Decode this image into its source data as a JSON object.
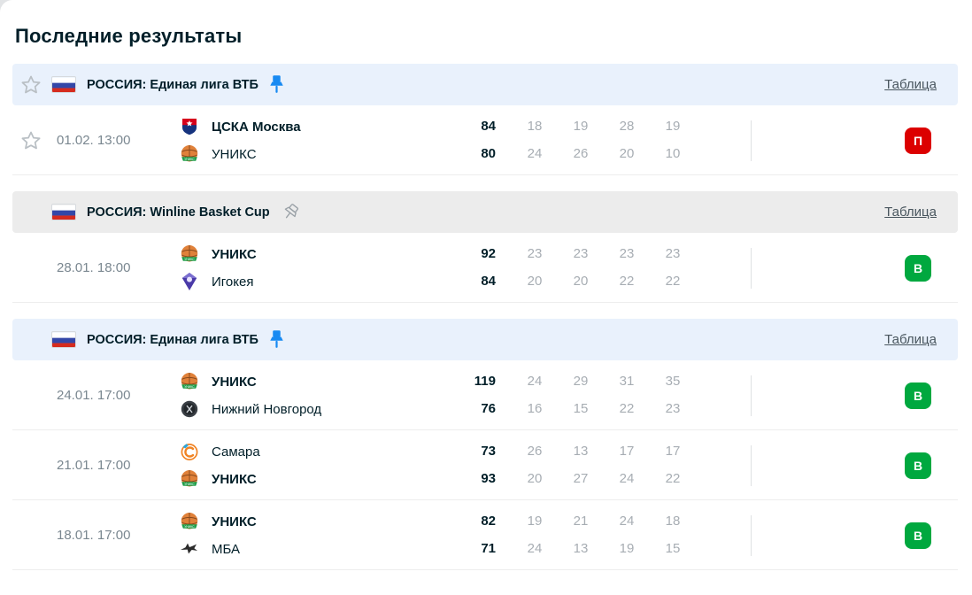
{
  "title": "Последние результаты",
  "table_link_label": "Таблица",
  "colors": {
    "accent_pin_blue": "#188af2",
    "win_green": "#00a83f",
    "loss_red": "#dc0000",
    "pinned_header_bg": "#e9f1fc",
    "unpinned_header_bg": "#ececec",
    "text_dark": "#001e28",
    "text_gray": "#7a8790",
    "quarters_gray": "#a7adb3"
  },
  "sections": [
    {
      "league": "РОССИЯ: Единая лига ВТБ",
      "flag": "russia",
      "pinned": true,
      "header_starred": true,
      "matches": [
        {
          "date": "01.02. 13:00",
          "starred": true,
          "teams": [
            {
              "name": "ЦСКА Москва",
              "logo": "cska",
              "winner": true,
              "score": "84",
              "quarters": [
                "18",
                "19",
                "28",
                "19"
              ]
            },
            {
              "name": "УНИКС",
              "logo": "uniks",
              "winner": false,
              "score": "80",
              "quarters": [
                "24",
                "26",
                "20",
                "10"
              ]
            }
          ],
          "result": {
            "label": "П",
            "type": "loss"
          }
        }
      ]
    },
    {
      "league": "РОССИЯ: Winline Basket Cup",
      "flag": "russia",
      "pinned": false,
      "header_starred": false,
      "matches": [
        {
          "date": "28.01. 18:00",
          "starred": false,
          "teams": [
            {
              "name": "УНИКС",
              "logo": "uniks",
              "winner": true,
              "score": "92",
              "quarters": [
                "23",
                "23",
                "23",
                "23"
              ]
            },
            {
              "name": "Игокея",
              "logo": "igokeya",
              "winner": false,
              "score": "84",
              "quarters": [
                "20",
                "20",
                "22",
                "22"
              ]
            }
          ],
          "result": {
            "label": "В",
            "type": "win"
          }
        }
      ]
    },
    {
      "league": "РОССИЯ: Единая лига ВТБ",
      "flag": "russia",
      "pinned": true,
      "header_starred": false,
      "matches": [
        {
          "date": "24.01. 17:00",
          "starred": false,
          "teams": [
            {
              "name": "УНИКС",
              "logo": "uniks",
              "winner": true,
              "score": "119",
              "quarters": [
                "24",
                "29",
                "31",
                "35"
              ]
            },
            {
              "name": "Нижний Новгород",
              "logo": "nn",
              "winner": false,
              "score": "76",
              "quarters": [
                "16",
                "15",
                "22",
                "23"
              ]
            }
          ],
          "result": {
            "label": "В",
            "type": "win"
          }
        },
        {
          "date": "21.01. 17:00",
          "starred": false,
          "teams": [
            {
              "name": "Самара",
              "logo": "samara",
              "winner": false,
              "score": "73",
              "quarters": [
                "26",
                "13",
                "17",
                "17"
              ]
            },
            {
              "name": "УНИКС",
              "logo": "uniks",
              "winner": true,
              "score": "93",
              "quarters": [
                "20",
                "27",
                "24",
                "22"
              ]
            }
          ],
          "result": {
            "label": "В",
            "type": "win"
          }
        },
        {
          "date": "18.01. 17:00",
          "starred": false,
          "teams": [
            {
              "name": "УНИКС",
              "logo": "uniks",
              "winner": true,
              "score": "82",
              "quarters": [
                "19",
                "21",
                "24",
                "18"
              ]
            },
            {
              "name": "МБА",
              "logo": "mba",
              "winner": false,
              "score": "71",
              "quarters": [
                "24",
                "13",
                "19",
                "15"
              ]
            }
          ],
          "result": {
            "label": "В",
            "type": "win"
          }
        }
      ]
    }
  ]
}
